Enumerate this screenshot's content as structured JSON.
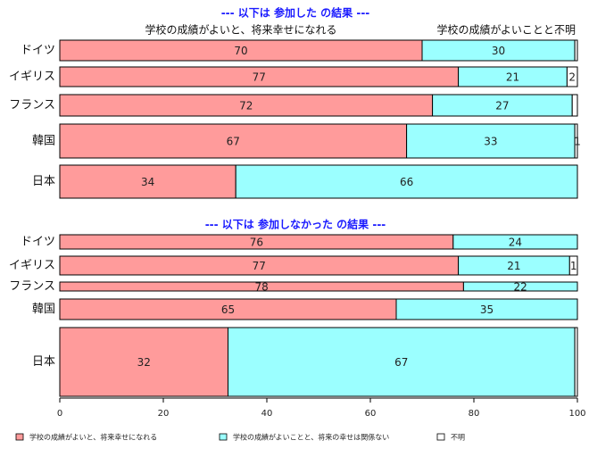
{
  "chart_data": {
    "type": "bar",
    "stacked": true,
    "orientation": "horizontal",
    "xlim": [
      0,
      100
    ],
    "xticks": [
      0,
      20,
      40,
      60,
      80,
      100
    ],
    "grid": false,
    "legend_position": "bottom",
    "colors": {
      "good_future": "#ff9b9b",
      "not_related": "#9bffff",
      "unknown": "#ffffff"
    },
    "panels": [
      {
        "title": "--- 以下は 参加した の結果 ---",
        "column_headers": [
          "学校の成績がよいと、将来幸せになれる",
          "学校の成績がよいことと..",
          "不明"
        ],
        "categories": [
          "ドイツ",
          "イギリス",
          "フランス",
          "韓国",
          "日本"
        ],
        "series": [
          {
            "values": [
              70,
              77,
              72,
              67,
              34
            ],
            "labels": [
              "70",
              "77",
              "72",
              "67",
              "34"
            ]
          },
          {
            "values": [
              29.5,
              21,
              27,
              32.5,
              66
            ],
            "labels": [
              "30",
              "21",
              "27",
              "33",
              "66"
            ]
          },
          {
            "values": [
              0.5,
              2,
              1,
              0.5,
              0
            ],
            "labels": [
              "",
              "2",
              "",
              "1",
              ""
            ]
          }
        ]
      },
      {
        "title": "--- 以下は 参加しなかった の結果 ---",
        "categories": [
          "ドイツ",
          "イギリス",
          "フランス",
          "韓国",
          "日本"
        ],
        "series": [
          {
            "values": [
              76,
              77,
              78,
              65,
              32.5
            ],
            "labels": [
              "76",
              "77",
              "78",
              "65",
              "32"
            ]
          },
          {
            "values": [
              24,
              21.5,
              22,
              35,
              67
            ],
            "labels": [
              "24",
              "21",
              "22",
              "35",
              "67"
            ]
          },
          {
            "values": [
              0,
              1.5,
              0,
              0,
              0.5
            ],
            "labels": [
              "",
              "1",
              "",
              "",
              ""
            ]
          }
        ]
      }
    ],
    "legend": [
      "学校の成績がよいと、将来幸せになれる",
      "学校の成績がよいことと、将来の幸せは関係ない",
      "不明"
    ]
  }
}
